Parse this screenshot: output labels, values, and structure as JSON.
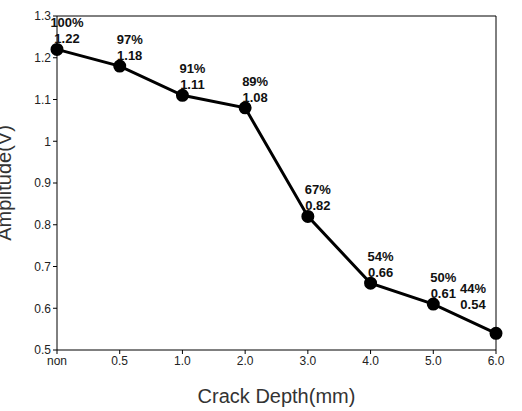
{
  "chart_data": {
    "type": "line",
    "x_label": "Crack Depth(mm)",
    "y_label": "Amplitude(V)",
    "categories": [
      "non",
      "0.5",
      "1.0",
      "2.0",
      "3.0",
      "4.0",
      "5.0",
      "6.0"
    ],
    "values": [
      1.22,
      1.18,
      1.11,
      1.08,
      0.82,
      0.66,
      0.61,
      0.54
    ],
    "percent_labels": [
      "100%",
      "97%",
      "91%",
      "89%",
      "67%",
      "54%",
      "50%",
      "44%"
    ],
    "color": "#000000",
    "marker": "circle",
    "data_labels": true,
    "ylim": [
      0.5,
      1.3
    ],
    "yticks": [
      0.5,
      0.6,
      0.7,
      0.8,
      0.9,
      1,
      1.1,
      1.2,
      1.3
    ],
    "grid": false
  }
}
